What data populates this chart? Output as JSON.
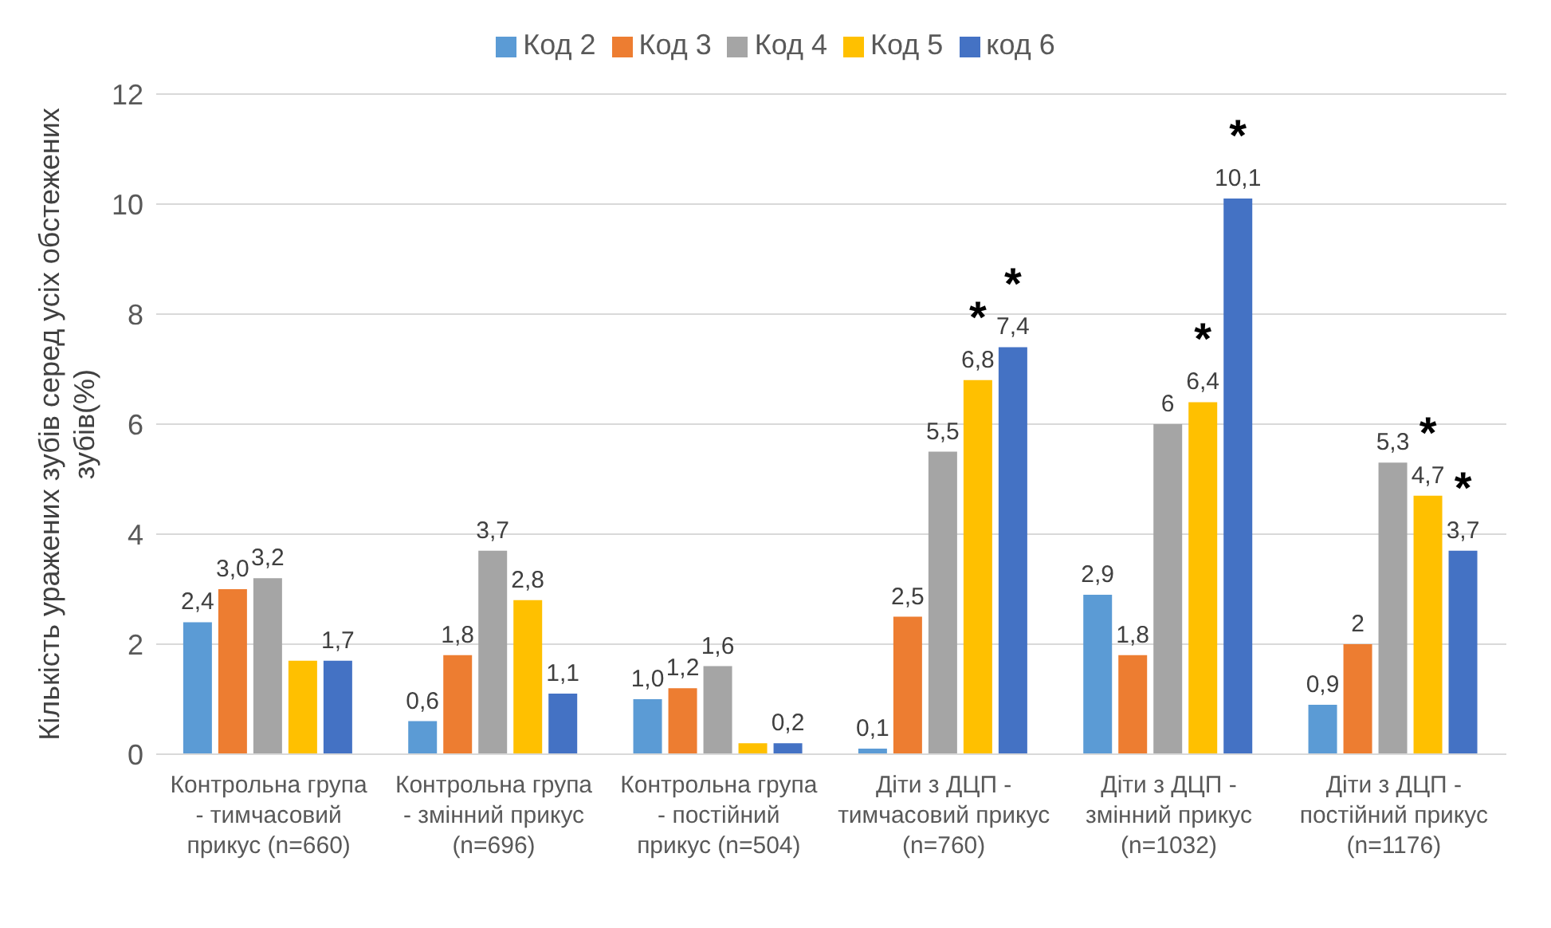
{
  "chart_data": {
    "type": "bar",
    "ylabel": "Кількість уражених зубів серед усіх обстежених зубів(%)",
    "categories": [
      "Контрольна група - тимчасовий прикус (n=660)",
      "Контрольна група - змінний прикус (n=696)",
      "Контрольна група - постійний прикус (n=504)",
      "Діти з ДЦП - тимчасовий прикус (n=760)",
      "Діти з ДЦП - змінний прикус (n=1032)",
      "Діти з ДЦП - постійний прикус (n=1176)"
    ],
    "series": [
      {
        "name": "Код 2",
        "color": "#5b9bd5",
        "values": [
          2.4,
          0.6,
          1.0,
          0.1,
          2.9,
          0.9
        ],
        "value_labels": [
          "2,4",
          "0,6",
          "1,0",
          "0,1",
          "2,9",
          "0,9"
        ]
      },
      {
        "name": "Код 3",
        "color": "#ed7d31",
        "values": [
          3.0,
          1.8,
          1.2,
          2.5,
          1.8,
          2.0
        ],
        "value_labels": [
          "3,0",
          "1,8",
          "1,2",
          "2,5",
          "1,8",
          "2"
        ]
      },
      {
        "name": "Код 4",
        "color": "#a5a5a5",
        "values": [
          3.2,
          3.7,
          1.6,
          5.5,
          6.0,
          5.3
        ],
        "value_labels": [
          "3,2",
          "3,7",
          "1,6",
          "5,5",
          "6",
          "5,3"
        ]
      },
      {
        "name": "Код 5",
        "color": "#ffc000",
        "values": [
          1.7,
          2.8,
          0.2,
          6.8,
          6.4,
          4.7
        ],
        "value_labels": [
          null,
          "2,8",
          null,
          "6,8",
          "6,4",
          "4,7"
        ]
      },
      {
        "name": "код 6",
        "color": "#4472c4",
        "values": [
          1.7,
          1.1,
          0.2,
          7.4,
          10.1,
          3.7
        ],
        "value_labels": [
          "1,7",
          "1,1",
          "0,2",
          "7,4",
          "10,1",
          "3,7"
        ]
      }
    ],
    "ylim": [
      0,
      12
    ],
    "yticks": [
      0,
      2,
      4,
      6,
      8,
      10,
      12
    ],
    "grid": "y",
    "legend": "top",
    "annotations": [
      "*",
      "*",
      "*",
      "*",
      "*",
      "*"
    ]
  }
}
